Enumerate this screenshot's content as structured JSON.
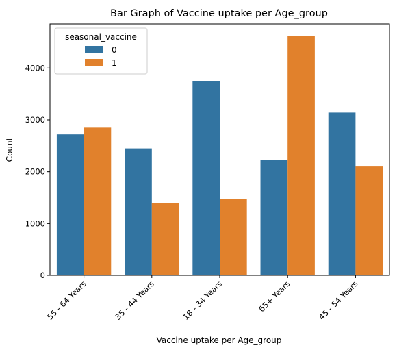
{
  "chart_data": {
    "type": "bar",
    "title": "Bar Graph of Vaccine uptake per Age_group",
    "xlabel": "Vaccine uptake per Age_group",
    "ylabel": "Count",
    "categories": [
      "55 - 64 Years",
      "35 - 44 Years",
      "18 - 34 Years",
      "65+ Years",
      "45 - 54 Years"
    ],
    "series": [
      {
        "name": "0",
        "color": "#3274a1",
        "values": [
          2720,
          2450,
          3740,
          2230,
          3140
        ]
      },
      {
        "name": "1",
        "color": "#e1812c",
        "values": [
          2850,
          1390,
          1480,
          4620,
          2100
        ]
      }
    ],
    "ylim": [
      0,
      4850
    ],
    "yticks": [
      0,
      1000,
      2000,
      3000,
      4000
    ],
    "grid": false,
    "legend": {
      "title": "seasonal_vaccine",
      "placement": "top-left"
    }
  }
}
